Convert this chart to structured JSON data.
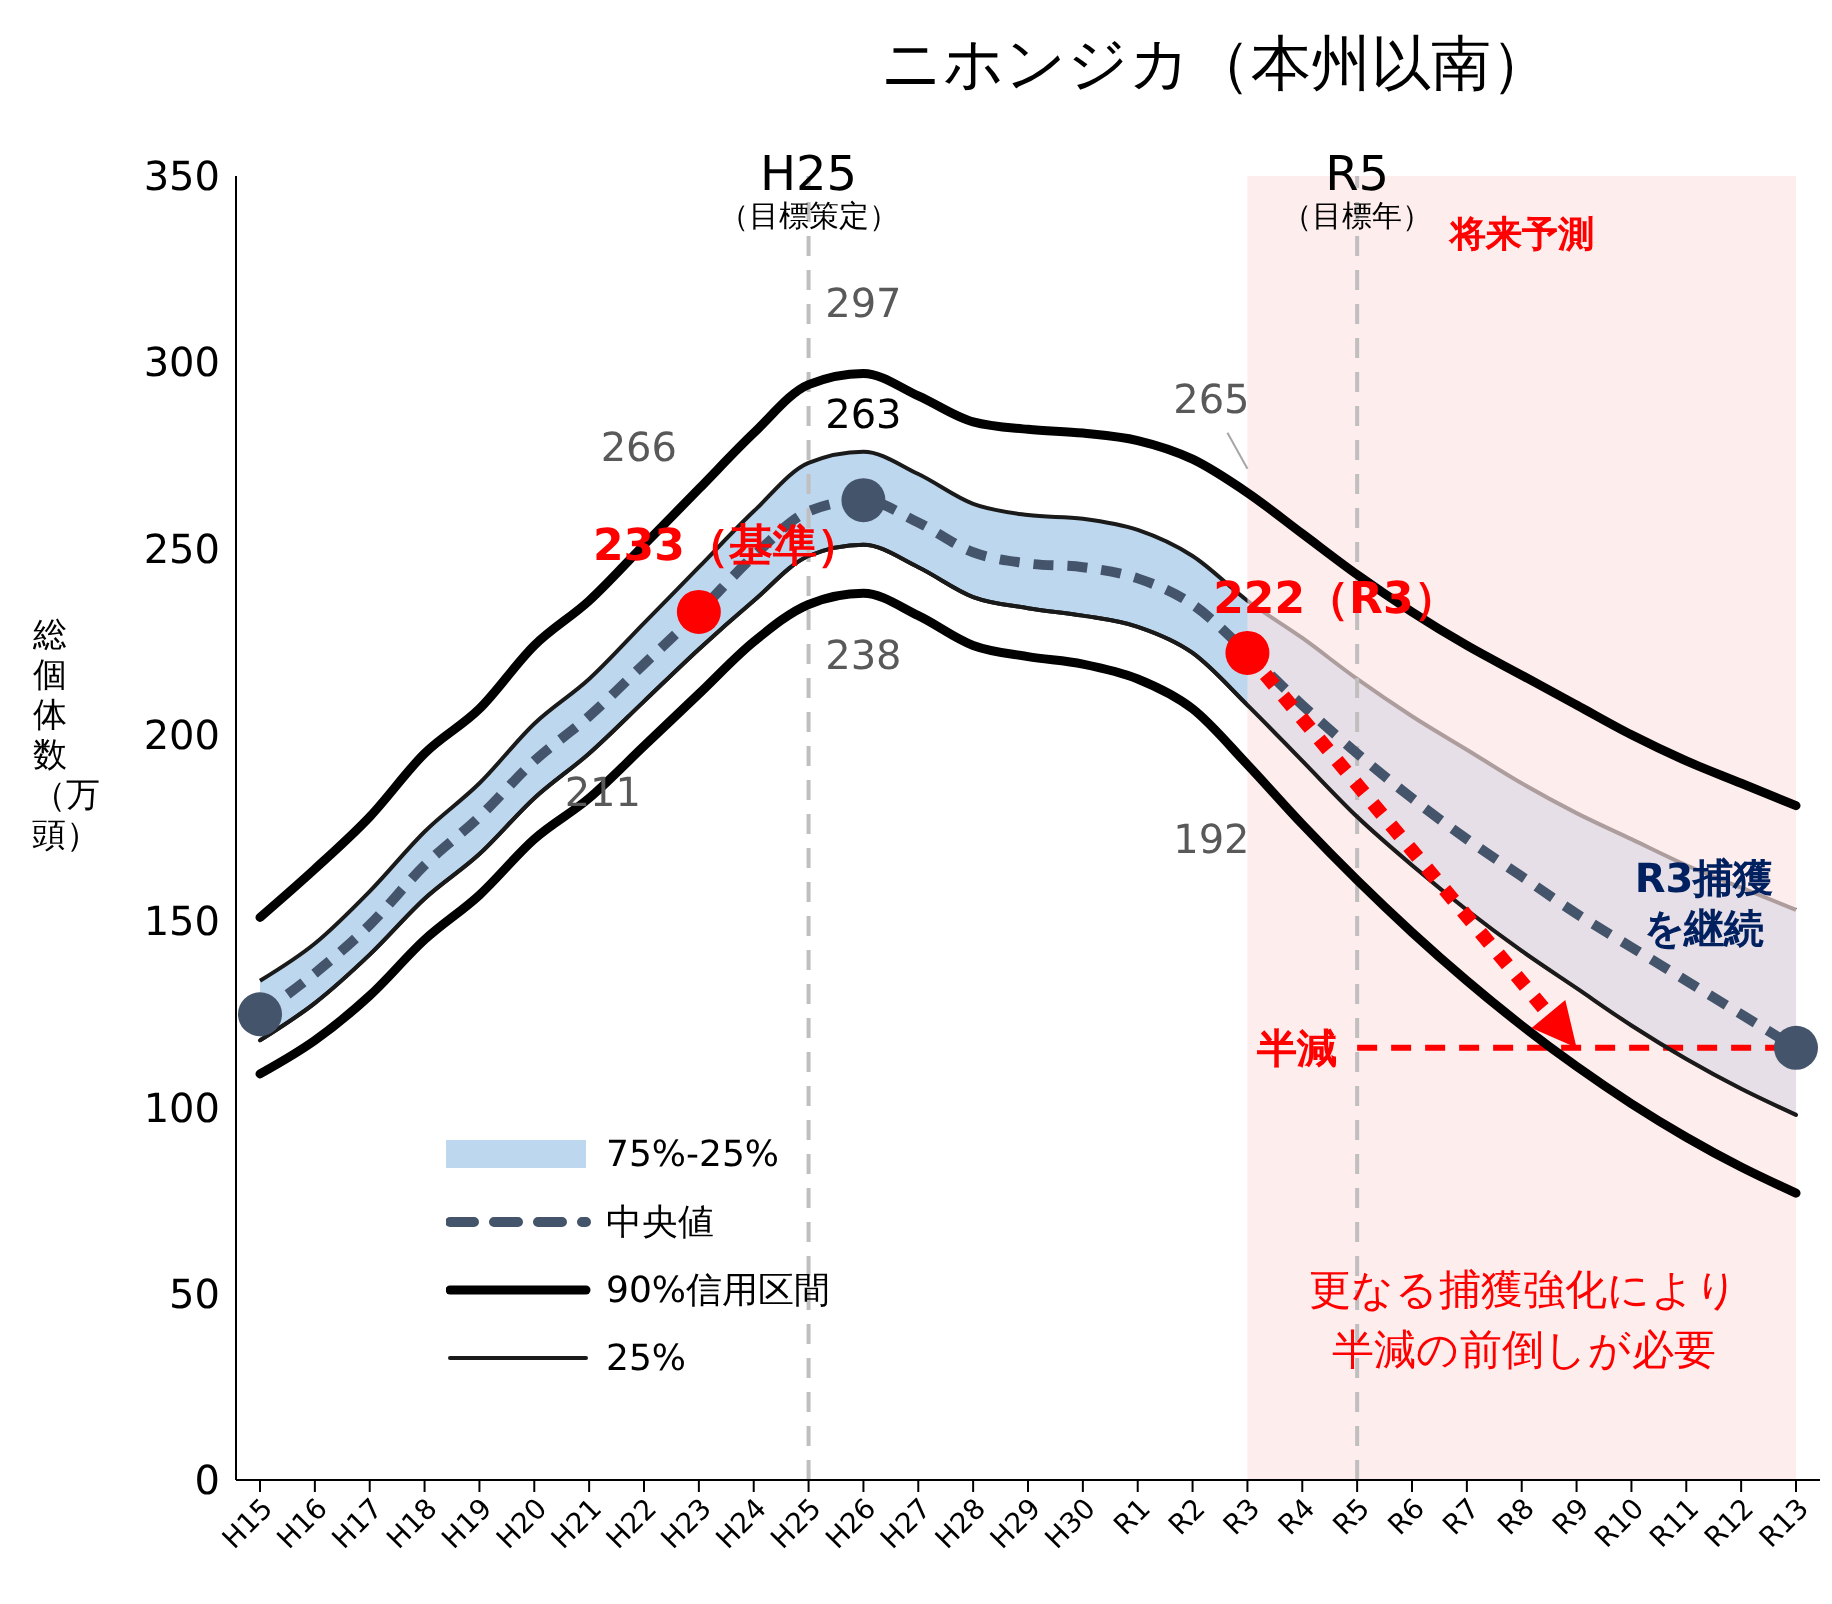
{
  "chart_data": {
    "type": "line",
    "title": "ニホンジカ（本州以南）",
    "ylabel": "総個体数（万頭）",
    "categories": [
      "H15",
      "H16",
      "H17",
      "H18",
      "H19",
      "H20",
      "H21",
      "H22",
      "H23",
      "H24",
      "H25",
      "H26",
      "H27",
      "H28",
      "H29",
      "H30",
      "R1",
      "R2",
      "R3",
      "R4",
      "R5",
      "R6",
      "R7",
      "R8",
      "R9",
      "R10",
      "R11",
      "R12",
      "R13"
    ],
    "ylim": [
      0,
      350
    ],
    "yticks": [
      0,
      50,
      100,
      150,
      200,
      250,
      300,
      350
    ],
    "grid": false,
    "legend": "bottom left",
    "series": [
      {
        "type": "area",
        "name": "75%-25%",
        "color": "#bdd7ee",
        "values": [
          134,
          144,
          158,
          174,
          187,
          203,
          215,
          230,
          245,
          260,
          273,
          276,
          270,
          262,
          259,
          258,
          255,
          248,
          236,
          226,
          215,
          205,
          196,
          187,
          179,
          172,
          165,
          159,
          153
        ]
      },
      {
        "type": "line",
        "name": "中央値",
        "color": "#44546a",
        "line_style": "dashed",
        "values": [
          125,
          136,
          149,
          165,
          178,
          193,
          205,
          219,
          233,
          248,
          260,
          263,
          257,
          249,
          246,
          245,
          242,
          235,
          222,
          208,
          195,
          183,
          172,
          162,
          152,
          143,
          134,
          125,
          116
        ]
      },
      {
        "type": "line",
        "name": "90%信用区間",
        "color": "#000000",
        "line_style": "solid",
        "values": [
          151,
          164,
          178,
          195,
          207,
          224,
          236,
          251,
          266,
          281,
          294,
          297,
          291,
          284,
          282,
          281,
          279,
          274,
          265,
          254,
          243,
          233,
          224,
          216,
          208,
          200,
          193,
          187,
          181
        ]
      },
      {
        "type": "line",
        "color": "#000000",
        "line_style": "solid",
        "values": [
          109,
          118,
          130,
          145,
          157,
          172,
          183,
          197,
          211,
          225,
          235,
          238,
          232,
          224,
          221,
          219,
          215,
          207,
          192,
          176,
          161,
          147,
          134,
          122,
          111,
          101,
          92,
          84,
          77
        ]
      },
      {
        "type": "line",
        "name": "25%",
        "color": "#1a1a1a",
        "line_style": "solid",
        "values": [
          118,
          128,
          141,
          156,
          168,
          183,
          195,
          209,
          223,
          236,
          248,
          251,
          245,
          237,
          234,
          232,
          229,
          222,
          208,
          193,
          178,
          165,
          153,
          142,
          132,
          122,
          113,
          105,
          98
        ]
      },
      {
        "type": "scatter",
        "marker": "circle",
        "color": "#44546a",
        "x": [
          "H15",
          "H26",
          "R13"
        ],
        "values": [
          125,
          263,
          116
        ]
      },
      {
        "type": "scatter",
        "marker": "circle",
        "color": "#ff0000",
        "x": [
          "H23",
          "R3"
        ],
        "values": [
          233,
          222
        ]
      }
    ],
    "ref_lines": [
      {
        "axis": "x",
        "value": "H25",
        "label": "H25（目標策定）",
        "color": "#bfbfbf",
        "line_style": "dashed"
      },
      {
        "axis": "x",
        "value": "R5",
        "label": "R5（目標年）",
        "color": "#bfbfbf",
        "line_style": "dashed"
      },
      {
        "axis": "y",
        "value": 116,
        "label": "半減",
        "color": "#ff0000",
        "line_style": "dashed"
      }
    ],
    "bands": [
      {
        "axis": "x",
        "from": "R3",
        "to": "R13",
        "label": "将来予測",
        "color": "#fde4e4"
      }
    ],
    "annotations": [
      {
        "text": "266",
        "x": "H23",
        "y": 266
      },
      {
        "text": "211",
        "x": "H23",
        "y": 211
      },
      {
        "text": "297",
        "x": "H26",
        "y": 297
      },
      {
        "text": "263",
        "x": "H26",
        "y": 263
      },
      {
        "text": "238",
        "x": "H26",
        "y": 238
      },
      {
        "text": "265",
        "x": "R3",
        "y": 265
      },
      {
        "text": "192",
        "x": "R3",
        "y": 192
      },
      {
        "text": "233（基準）",
        "x": "H23",
        "y": 233
      },
      {
        "text": "222（R3）",
        "x": "R3",
        "y": 222
      },
      {
        "text": "R3捕獲を継続",
        "x": "R13",
        "y": 116
      },
      "更なる捕獲強化により半減の前倒しが必要"
    ]
  }
}
